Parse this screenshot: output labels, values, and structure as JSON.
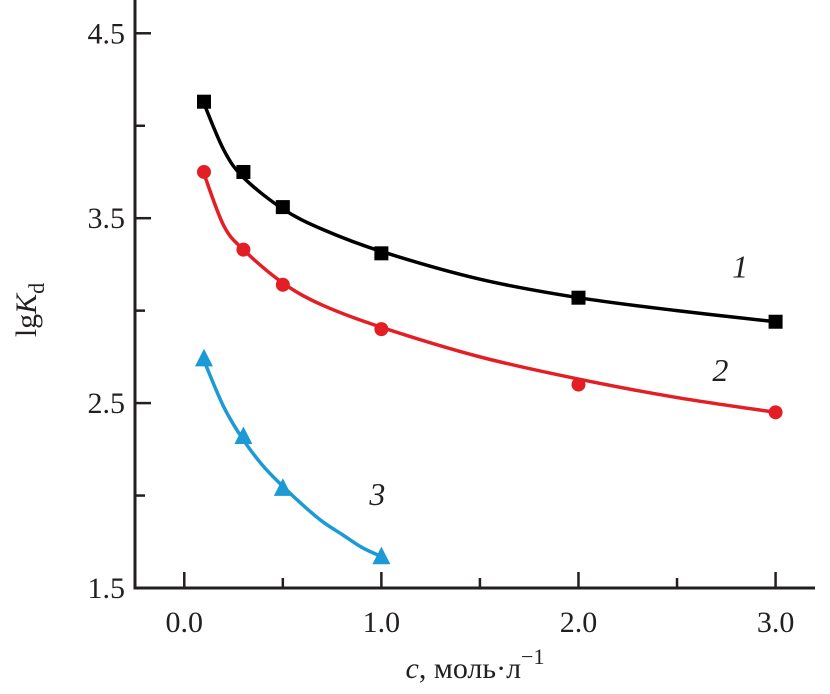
{
  "chart_data": {
    "type": "scatter",
    "title": "",
    "xlabel": {
      "var": "c",
      "rest": ", моль·л",
      "sup": "−1"
    },
    "ylabel": {
      "base": "lg",
      "var": "K",
      "sub": "d"
    },
    "xlim": [
      -0.25,
      3.2
    ],
    "ylim": [
      1.5,
      4.68
    ],
    "x_ticks": [
      {
        "v": 0.0,
        "label": "0.0"
      },
      {
        "v": 1.0,
        "label": "1.0"
      },
      {
        "v": 2.0,
        "label": "2.0"
      },
      {
        "v": 3.0,
        "label": "3.0"
      }
    ],
    "x_minor_ticks": [
      0.5,
      1.5,
      2.5
    ],
    "y_ticks": [
      {
        "v": 1.5,
        "label": "1.5"
      },
      {
        "v": 2.5,
        "label": "2.5"
      },
      {
        "v": 3.5,
        "label": "3.5"
      },
      {
        "v": 4.5,
        "label": "4.5"
      }
    ],
    "y_minor_ticks": [
      2.0,
      3.0,
      4.0
    ],
    "grid": false,
    "series": [
      {
        "label": "1",
        "marker": "square",
        "color": "#000000",
        "x": [
          0.1,
          0.3,
          0.5,
          1.0,
          2.0,
          3.0
        ],
        "y": [
          4.13,
          3.75,
          3.56,
          3.31,
          3.07,
          2.94
        ],
        "fit_curve": {
          "x": [
            0.1,
            0.2,
            0.3,
            0.5,
            0.7,
            1.0,
            1.5,
            2.0,
            2.5,
            3.0
          ],
          "y": [
            4.12,
            3.87,
            3.72,
            3.55,
            3.44,
            3.32,
            3.17,
            3.07,
            3.0,
            2.94
          ]
        },
        "label_at": [
          2.82,
          3.18
        ]
      },
      {
        "label": "2",
        "marker": "circle",
        "color": "#e31e24",
        "x": [
          0.1,
          0.3,
          0.5,
          1.0,
          2.0,
          3.0
        ],
        "y": [
          3.75,
          3.33,
          3.14,
          2.9,
          2.6,
          2.45
        ],
        "fit_curve": {
          "x": [
            0.1,
            0.2,
            0.3,
            0.5,
            0.7,
            1.0,
            1.5,
            2.0,
            2.5,
            3.0
          ],
          "y": [
            3.74,
            3.46,
            3.33,
            3.15,
            3.03,
            2.91,
            2.75,
            2.63,
            2.53,
            2.45
          ]
        },
        "label_at": [
          2.72,
          2.62
        ]
      },
      {
        "label": "3",
        "marker": "triangle",
        "color": "#1c9ad6",
        "x": [
          0.1,
          0.3,
          0.5,
          1.0
        ],
        "y": [
          2.74,
          2.32,
          2.04,
          1.67
        ],
        "fit_curve": {
          "x": [
            0.1,
            0.2,
            0.3,
            0.4,
            0.5,
            0.6,
            0.7,
            0.8,
            0.9,
            1.0
          ],
          "y": [
            2.73,
            2.48,
            2.3,
            2.16,
            2.05,
            1.95,
            1.86,
            1.79,
            1.72,
            1.67
          ]
        },
        "label_at": [
          0.98,
          1.95
        ]
      }
    ]
  }
}
